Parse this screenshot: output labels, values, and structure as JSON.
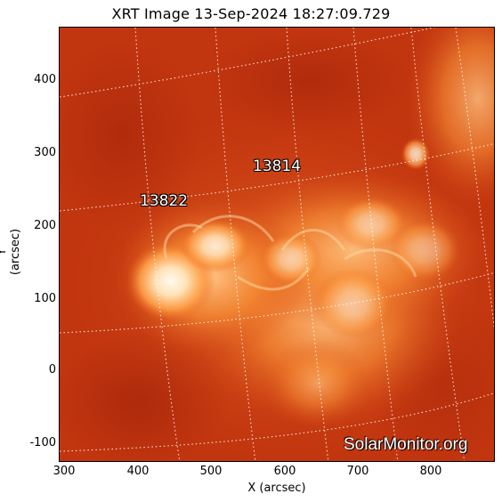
{
  "title": "XRT Image 13-Sep-2024 18:27:09.729",
  "axes": {
    "x_label": "X (arcsec)",
    "y_label": "Y (arcsec)",
    "x_ticks": [
      "300",
      "400",
      "500",
      "600",
      "700",
      "800"
    ],
    "y_ticks": [
      "400",
      "300",
      "200",
      "100",
      "0",
      "-100"
    ]
  },
  "regions": [
    {
      "id": "13814"
    },
    {
      "id": "13822"
    }
  ],
  "watermark": "SolarMonitor.org",
  "colors": {
    "background_dark": "#b0250a",
    "mid": "#d84a12",
    "bright": "#ff9a3a",
    "hot": "#fff6e8",
    "grid": "#ffffff"
  }
}
